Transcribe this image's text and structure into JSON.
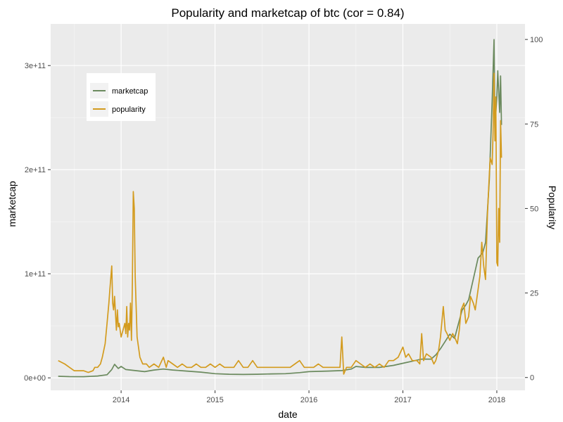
{
  "chart_data": {
    "type": "line",
    "title": "Popularity and marketcap of btc (cor = 0.84)",
    "xlabel": "date",
    "ylabel": "marketcap",
    "y2label": "Popularity",
    "xlim": [
      2013.25,
      2018.3
    ],
    "ylim": [
      -12000000000,
      340000000000
    ],
    "y2lim": [
      -3.8,
      104.6
    ],
    "x_ticks": [
      2014,
      2015,
      2016,
      2017,
      2018
    ],
    "x_tick_labels": [
      "2014",
      "2015",
      "2016",
      "2017",
      "2018"
    ],
    "y_ticks": [
      0,
      100000000000,
      200000000000,
      300000000000
    ],
    "y_tick_labels": [
      "0e+00",
      "1e+11",
      "2e+11",
      "3e+11"
    ],
    "y2_ticks": [
      0,
      25,
      50,
      75,
      100
    ],
    "y2_tick_labels": [
      "0",
      "25",
      "50",
      "75",
      "100"
    ],
    "grid": true,
    "legend_position": "top-left",
    "series": [
      {
        "name": "marketcap",
        "axis": "left",
        "color": "#6b8a5e",
        "x": [
          2013.33,
          2013.45,
          2013.6,
          2013.75,
          2013.85,
          2013.9,
          2013.93,
          2013.97,
          2014.0,
          2014.05,
          2014.1,
          2014.15,
          2014.25,
          2014.35,
          2014.45,
          2014.55,
          2014.7,
          2014.85,
          2015.0,
          2015.15,
          2015.3,
          2015.45,
          2015.6,
          2015.75,
          2015.9,
          2016.0,
          2016.2,
          2016.35,
          2016.45,
          2016.5,
          2016.6,
          2016.75,
          2016.9,
          2017.0,
          2017.1,
          2017.2,
          2017.3,
          2017.35,
          2017.4,
          2017.45,
          2017.5,
          2017.55,
          2017.6,
          2017.63,
          2017.67,
          2017.7,
          2017.75,
          2017.8,
          2017.85,
          2017.88,
          2017.9,
          2017.92,
          2017.95,
          2017.97,
          2017.98,
          2018.0,
          2018.01,
          2018.03,
          2018.04,
          2018.05
        ],
        "y": [
          1500000000,
          1200000000,
          1100000000,
          1800000000,
          3000000000,
          8000000000,
          13000000000,
          9000000000,
          11000000000,
          8000000000,
          7500000000,
          7000000000,
          6000000000,
          7500000000,
          8500000000,
          7500000000,
          6500000000,
          5500000000,
          4000000000,
          3500000000,
          3300000000,
          3500000000,
          3800000000,
          4000000000,
          5000000000,
          6000000000,
          6500000000,
          7000000000,
          8500000000,
          11000000000,
          10000000000,
          10000000000,
          12000000000,
          14000000000,
          16000000000,
          18000000000,
          18000000000,
          22000000000,
          28000000000,
          35000000000,
          42000000000,
          38000000000,
          55000000000,
          65000000000,
          70000000000,
          75000000000,
          95000000000,
          115000000000,
          120000000000,
          130000000000,
          160000000000,
          190000000000,
          265000000000,
          325000000000,
          240000000000,
          270000000000,
          295000000000,
          255000000000,
          290000000000,
          243000000000
        ]
      },
      {
        "name": "popularity",
        "axis": "right",
        "color": "#d39b1e",
        "x": [
          2013.33,
          2013.4,
          2013.45,
          2013.5,
          2013.55,
          2013.6,
          2013.65,
          2013.7,
          2013.72,
          2013.75,
          2013.78,
          2013.8,
          2013.83,
          2013.85,
          2013.87,
          2013.88,
          2013.9,
          2013.91,
          2013.92,
          2013.93,
          2013.95,
          2013.96,
          2013.97,
          2013.98,
          2014.0,
          2014.02,
          2014.04,
          2014.05,
          2014.06,
          2014.07,
          2014.08,
          2014.09,
          2014.1,
          2014.11,
          2014.12,
          2014.13,
          2014.14,
          2014.15,
          2014.17,
          2014.2,
          2014.23,
          2014.27,
          2014.3,
          2014.35,
          2014.4,
          2014.45,
          2014.48,
          2014.5,
          2014.55,
          2014.6,
          2014.65,
          2014.7,
          2014.75,
          2014.8,
          2014.85,
          2014.9,
          2014.95,
          2015.0,
          2015.05,
          2015.1,
          2015.15,
          2015.2,
          2015.25,
          2015.3,
          2015.35,
          2015.4,
          2015.45,
          2015.5,
          2015.55,
          2015.6,
          2015.65,
          2015.7,
          2015.75,
          2015.8,
          2015.85,
          2015.9,
          2015.95,
          2016.0,
          2016.05,
          2016.1,
          2016.15,
          2016.2,
          2016.25,
          2016.3,
          2016.33,
          2016.35,
          2016.37,
          2016.4,
          2016.45,
          2016.5,
          2016.55,
          2016.6,
          2016.65,
          2016.7,
          2016.75,
          2016.8,
          2016.85,
          2016.9,
          2016.95,
          2017.0,
          2017.03,
          2017.06,
          2017.1,
          2017.15,
          2017.18,
          2017.2,
          2017.22,
          2017.25,
          2017.3,
          2017.33,
          2017.35,
          2017.38,
          2017.4,
          2017.43,
          2017.45,
          2017.47,
          2017.5,
          2017.53,
          2017.55,
          2017.58,
          2017.6,
          2017.62,
          2017.65,
          2017.67,
          2017.7,
          2017.72,
          2017.75,
          2017.77,
          2017.8,
          2017.82,
          2017.84,
          2017.86,
          2017.88,
          2017.9,
          2017.92,
          2017.93,
          2017.95,
          2017.96,
          2017.97,
          2017.98,
          2017.99,
          2018.0,
          2018.01,
          2018.02,
          2018.03,
          2018.04,
          2018.05
        ],
        "y": [
          5,
          4,
          3,
          2,
          2,
          2,
          1.5,
          2,
          3,
          3,
          4,
          6,
          10,
          16,
          22,
          26,
          33,
          22,
          20,
          24,
          14,
          20,
          15,
          16,
          12,
          14,
          16,
          13,
          21,
          12,
          16,
          14,
          22,
          11,
          28,
          55,
          50,
          30,
          12,
          6,
          4,
          4,
          3,
          4,
          3,
          6,
          3,
          5,
          4,
          3,
          4,
          3,
          3,
          4,
          3,
          3,
          4,
          3,
          4,
          3,
          3,
          3,
          5,
          3,
          3,
          5,
          3,
          3,
          3,
          3,
          3,
          3,
          3,
          3,
          4,
          5,
          3,
          3,
          3,
          4,
          3,
          3,
          3,
          3,
          3,
          12,
          1,
          3,
          3,
          5,
          4,
          3,
          4,
          3,
          4,
          3,
          5,
          5,
          6,
          9,
          6,
          7,
          5,
          5,
          4,
          13,
          5,
          7,
          6,
          4,
          5,
          8,
          12,
          21,
          14,
          13,
          11,
          13,
          12,
          10,
          14,
          20,
          22,
          16,
          18,
          24,
          22,
          20,
          26,
          30,
          40,
          33,
          29,
          48,
          60,
          65,
          63,
          72,
          90,
          70,
          83,
          34,
          33,
          50,
          40,
          76,
          65
        ]
      }
    ]
  }
}
